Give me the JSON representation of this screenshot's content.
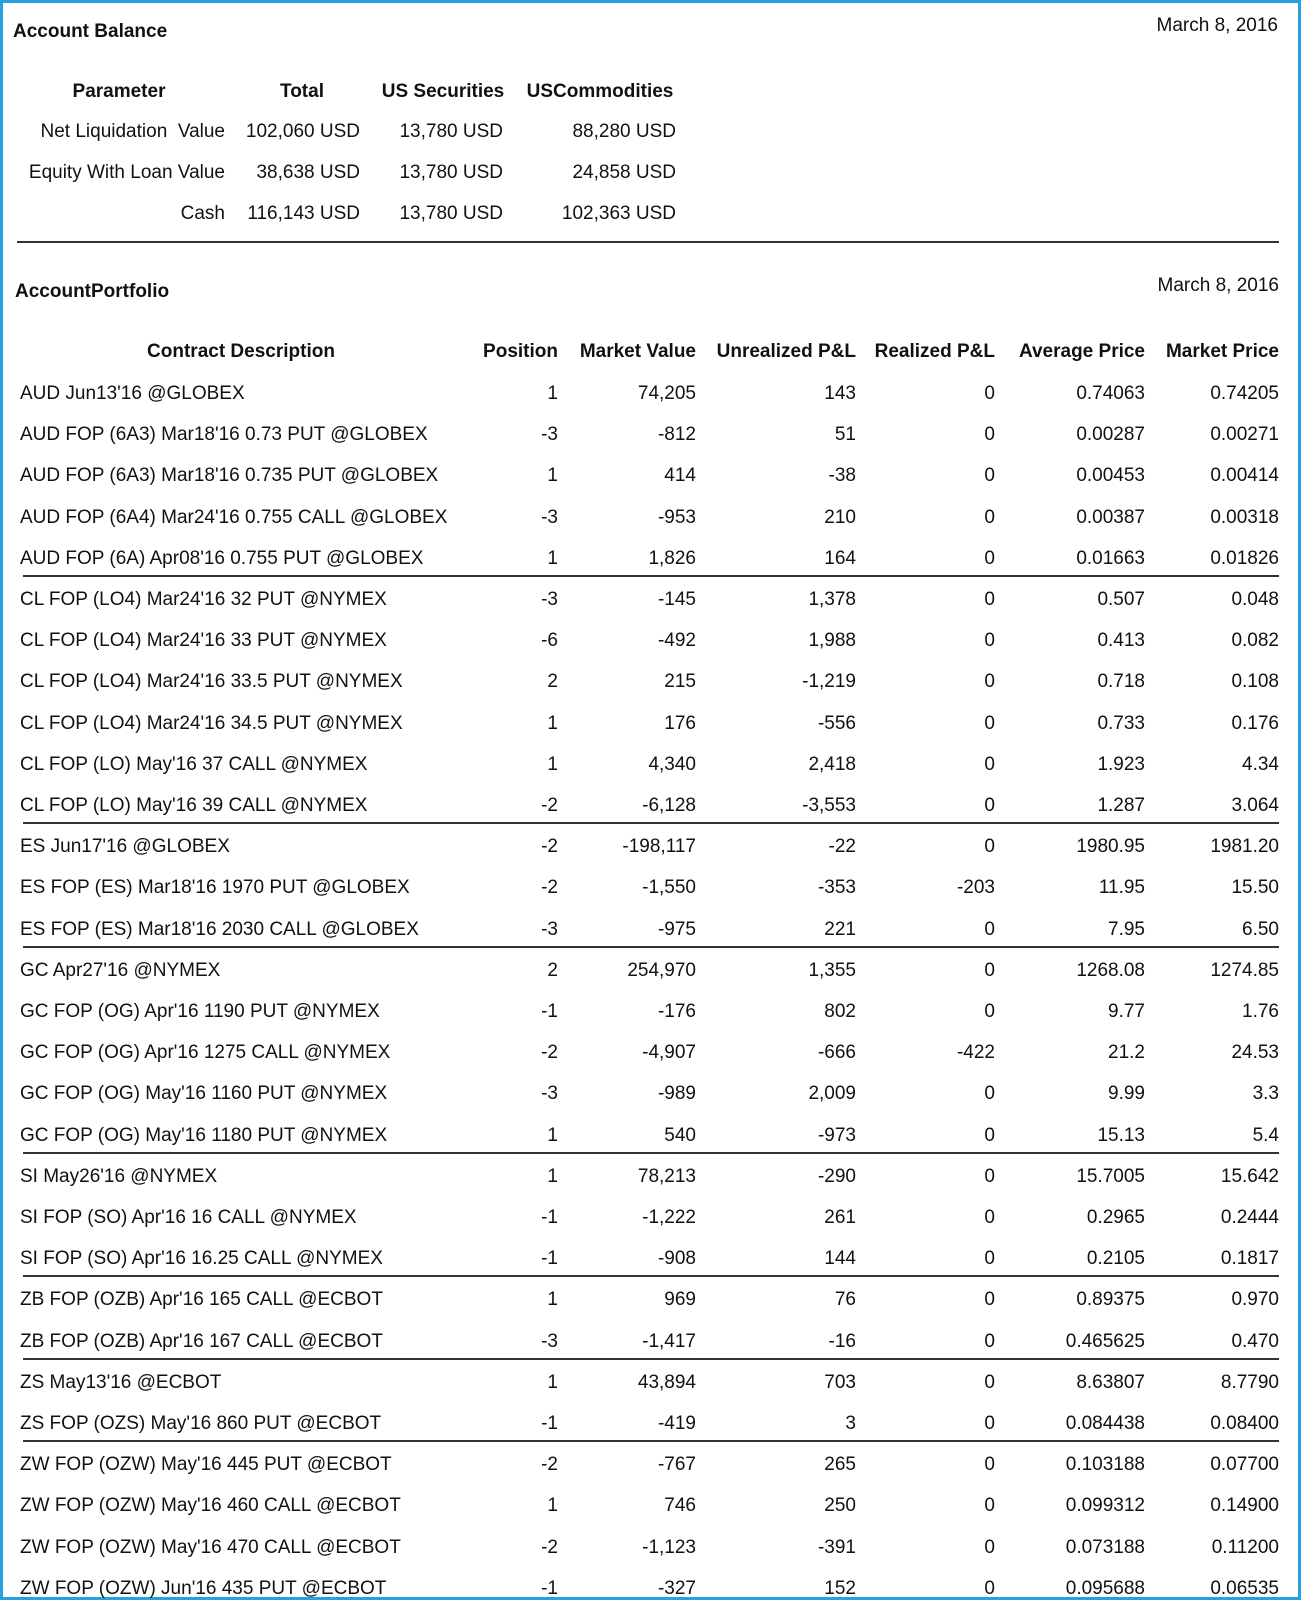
{
  "balance": {
    "title": "Account Balance",
    "date": "March 8, 2016",
    "columns": [
      "Parameter",
      "Total",
      "US Securities",
      "USCommodities"
    ],
    "rows": [
      [
        "Net Liquidation  Value",
        "102,060 USD",
        "13,780 USD",
        "88,280 USD"
      ],
      [
        "Equity With Loan Value",
        "38,638 USD",
        "13,780 USD",
        "24,858 USD"
      ],
      [
        "Cash",
        "116,143 USD",
        "13,780 USD",
        "102,363 USD"
      ]
    ]
  },
  "portfolio": {
    "title": "AccountPortfolio",
    "date": "March 8, 2016",
    "columns": [
      "Contract Description",
      "Position",
      "Market Value",
      "Unrealized P&L",
      "Realized P&L",
      "Average Price",
      "Market Price"
    ],
    "groups": [
      [
        [
          "AUD Jun13'16 @GLOBEX",
          "1",
          "74,205",
          "143",
          "0",
          "0.74063",
          "0.74205"
        ],
        [
          "AUD FOP (6A3) Mar18'16 0.73 PUT @GLOBEX",
          "-3",
          "-812",
          "51",
          "0",
          "0.00287",
          "0.00271"
        ],
        [
          "AUD FOP (6A3) Mar18'16 0.735 PUT @GLOBEX",
          "1",
          "414",
          "-38",
          "0",
          "0.00453",
          "0.00414"
        ],
        [
          "AUD FOP (6A4) Mar24'16 0.755 CALL @GLOBEX",
          "-3",
          "-953",
          "210",
          "0",
          "0.00387",
          "0.00318"
        ],
        [
          "AUD FOP (6A) Apr08'16 0.755 PUT @GLOBEX",
          "1",
          "1,826",
          "164",
          "0",
          "0.01663",
          "0.01826"
        ]
      ],
      [
        [
          "CL FOP (LO4) Mar24'16 32 PUT @NYMEX",
          "-3",
          "-145",
          "1,378",
          "0",
          "0.507",
          "0.048"
        ],
        [
          "CL FOP (LO4) Mar24'16 33 PUT @NYMEX",
          "-6",
          "-492",
          "1,988",
          "0",
          "0.413",
          "0.082"
        ],
        [
          "CL FOP (LO4) Mar24'16 33.5 PUT @NYMEX",
          "2",
          "215",
          "-1,219",
          "0",
          "0.718",
          "0.108"
        ],
        [
          "CL FOP (LO4) Mar24'16 34.5 PUT @NYMEX",
          "1",
          "176",
          "-556",
          "0",
          "0.733",
          "0.176"
        ],
        [
          "CL FOP (LO) May'16 37 CALL @NYMEX",
          "1",
          "4,340",
          "2,418",
          "0",
          "1.923",
          "4.34"
        ],
        [
          "CL FOP (LO) May'16 39 CALL @NYMEX",
          "-2",
          "-6,128",
          "-3,553",
          "0",
          "1.287",
          "3.064"
        ]
      ],
      [
        [
          "ES Jun17'16 @GLOBEX",
          "-2",
          "-198,117",
          "-22",
          "0",
          "1980.95",
          "1981.20"
        ],
        [
          "ES FOP (ES) Mar18'16 1970 PUT @GLOBEX",
          "-2",
          "-1,550",
          "-353",
          "-203",
          "11.95",
          "15.50"
        ],
        [
          "ES FOP (ES) Mar18'16 2030 CALL @GLOBEX",
          "-3",
          "-975",
          "221",
          "0",
          "7.95",
          "6.50"
        ]
      ],
      [
        [
          "GC Apr27'16 @NYMEX",
          "2",
          "254,970",
          "1,355",
          "0",
          "1268.08",
          "1274.85"
        ],
        [
          "GC FOP (OG) Apr'16 1190 PUT @NYMEX",
          "-1",
          "-176",
          "802",
          "0",
          "9.77",
          "1.76"
        ],
        [
          "GC FOP (OG) Apr'16 1275 CALL @NYMEX",
          "-2",
          "-4,907",
          "-666",
          "-422",
          "21.2",
          "24.53"
        ],
        [
          "GC FOP (OG) May'16 1160 PUT @NYMEX",
          "-3",
          "-989",
          "2,009",
          "0",
          "9.99",
          "3.3"
        ],
        [
          "GC FOP (OG) May'16 1180 PUT @NYMEX",
          "1",
          "540",
          "-973",
          "0",
          "15.13",
          "5.4"
        ]
      ],
      [
        [
          "SI May26'16 @NYMEX",
          "1",
          "78,213",
          "-290",
          "0",
          "15.7005",
          "15.642"
        ],
        [
          "SI FOP (SO) Apr'16 16 CALL @NYMEX",
          "-1",
          "-1,222",
          "261",
          "0",
          "0.2965",
          "0.2444"
        ],
        [
          "SI FOP (SO) Apr'16 16.25 CALL @NYMEX",
          "-1",
          "-908",
          "144",
          "0",
          "0.2105",
          "0.1817"
        ]
      ],
      [
        [
          "ZB FOP (OZB) Apr'16 165 CALL @ECBOT",
          "1",
          "969",
          "76",
          "0",
          "0.89375",
          "0.970"
        ],
        [
          "ZB FOP (OZB) Apr'16 167 CALL @ECBOT",
          "-3",
          "-1,417",
          "-16",
          "0",
          "0.465625",
          "0.470"
        ]
      ],
      [
        [
          "ZS May13'16 @ECBOT",
          "1",
          "43,894",
          "703",
          "0",
          "8.63807",
          "8.7790"
        ],
        [
          "ZS FOP (OZS) May'16 860 PUT @ECBOT",
          "-1",
          "-419",
          "3",
          "0",
          "0.084438",
          "0.08400"
        ]
      ],
      [
        [
          "ZW FOP (OZW) May'16 445 PUT @ECBOT",
          "-2",
          "-767",
          "265",
          "0",
          "0.103188",
          "0.07700"
        ],
        [
          "ZW FOP (OZW) May'16 460 CALL @ECBOT",
          "1",
          "746",
          "250",
          "0",
          "0.099312",
          "0.14900"
        ],
        [
          "ZW FOP (OZW) May'16 470 CALL @ECBOT",
          "-2",
          "-1,123",
          "-391",
          "0",
          "0.073188",
          "0.11200"
        ],
        [
          "ZW FOP (OZW) Jun'16 435 PUT @ECBOT",
          "-1",
          "-327",
          "152",
          "0",
          "0.095688",
          "0.06535"
        ]
      ]
    ]
  }
}
